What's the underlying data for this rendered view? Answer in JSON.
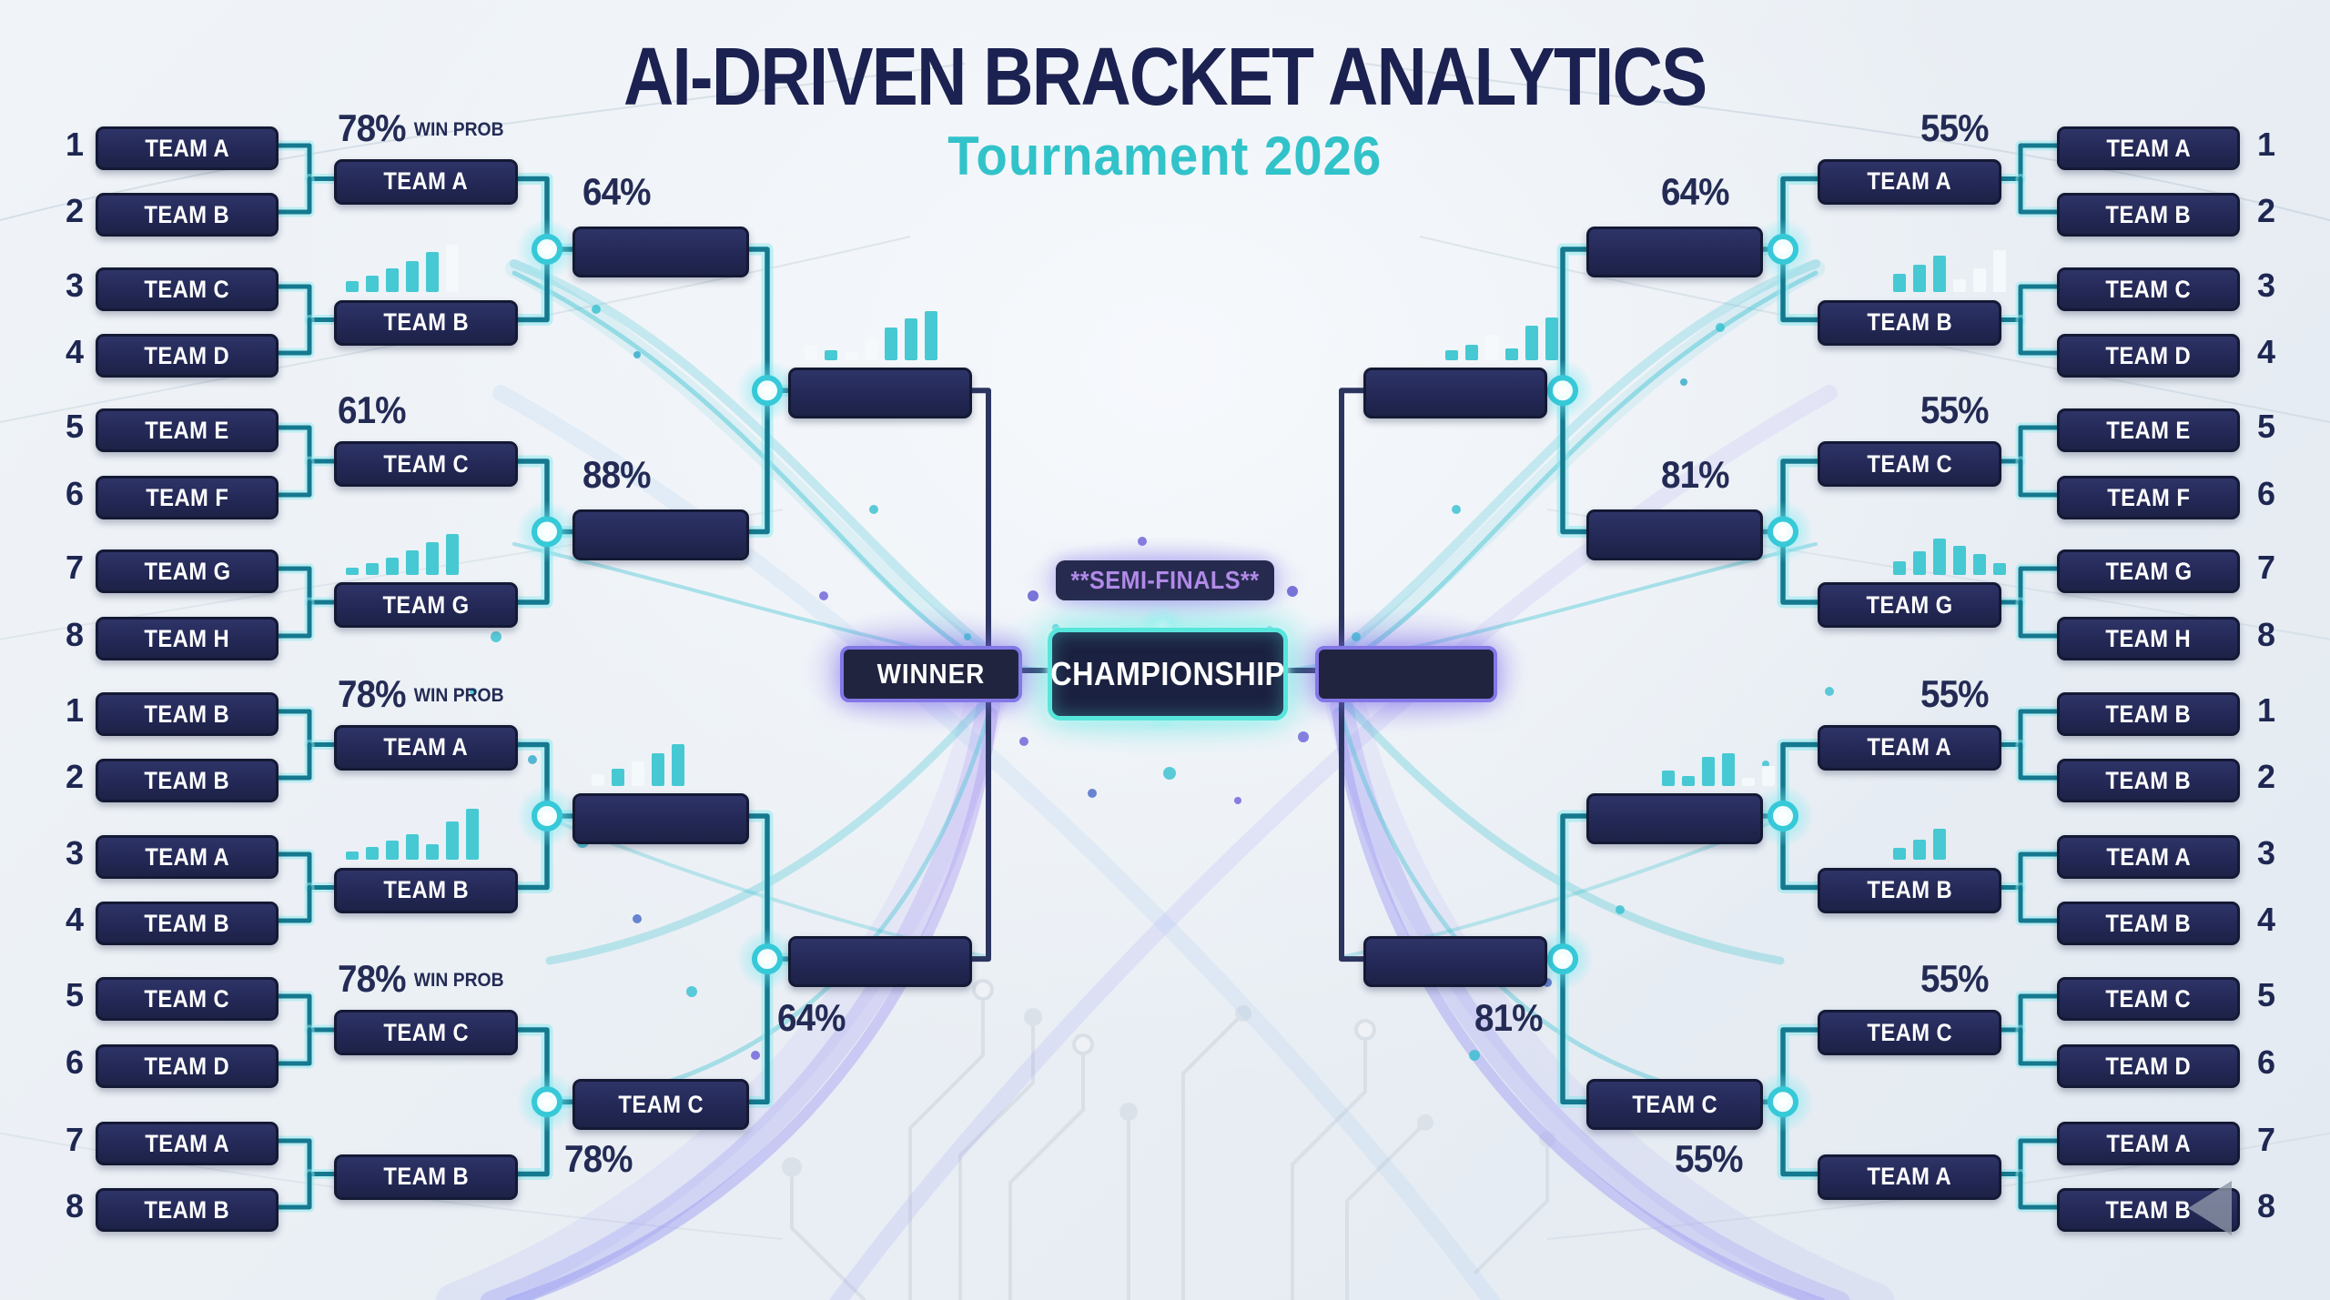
{
  "header": {
    "title": "AI-DRIVEN BRACKET ANALYTICS",
    "subtitle": "Tournament 2026"
  },
  "center": {
    "semi_finals": "**SEMI-FINALS**",
    "championship": "CHAMPIONSHIP",
    "winner": "WINNER",
    "final_right": ""
  },
  "colors": {
    "background": "#edf1f6",
    "navy_text": "#1b2150",
    "teal_accent": "#31c3c9",
    "box_fill": "#232856",
    "wire_teal": "#15798f",
    "spine_navy": "#2c3560",
    "purple_accent": "#8377e6",
    "championship_border": "#58e6dc",
    "semi_finals_text": "#b18ae8"
  },
  "icons": {
    "bottom_right_corner": "playback-arrow-icon"
  },
  "left_bracket": {
    "quads": [
      {
        "seeds": [
          {
            "seed": "1",
            "team": "TEAM A"
          },
          {
            "seed": "2",
            "team": "TEAM B"
          },
          {
            "seed": "3",
            "team": "TEAM C"
          },
          {
            "seed": "4",
            "team": "TEAM D"
          },
          {
            "seed": "5",
            "team": "TEAM E"
          },
          {
            "seed": "6",
            "team": "TEAM F"
          },
          {
            "seed": "7",
            "team": "TEAM G"
          },
          {
            "seed": "8",
            "team": "TEAM H"
          }
        ],
        "round2": [
          {
            "team": "TEAM A",
            "pct": "78%",
            "pct_note": "WIN PROB"
          },
          {
            "team": "TEAM B",
            "pct": "",
            "pct_note": ""
          },
          {
            "team": "TEAM C",
            "pct": "61%",
            "pct_note": ""
          },
          {
            "team": "TEAM G",
            "pct": "",
            "pct_note": ""
          }
        ],
        "round3": [
          {
            "team": "",
            "pct_above": "64%",
            "pct_below": ""
          },
          {
            "team": "",
            "pct_above": "88%",
            "pct_below": ""
          }
        ]
      },
      {
        "seeds": [
          {
            "seed": "1",
            "team": "TEAM B"
          },
          {
            "seed": "2",
            "team": "TEAM B"
          },
          {
            "seed": "3",
            "team": "TEAM A"
          },
          {
            "seed": "4",
            "team": "TEAM B"
          },
          {
            "seed": "5",
            "team": "TEAM C"
          },
          {
            "seed": "6",
            "team": "TEAM D"
          },
          {
            "seed": "7",
            "team": "TEAM A"
          },
          {
            "seed": "8",
            "team": "TEAM B"
          }
        ],
        "round2": [
          {
            "team": "TEAM A",
            "pct": "78%",
            "pct_note": "WIN PROB"
          },
          {
            "team": "TEAM B",
            "pct": "",
            "pct_note": ""
          },
          {
            "team": "TEAM C",
            "pct": "78%",
            "pct_note": "WIN PROB"
          },
          {
            "team": "TEAM B",
            "pct": "",
            "pct_note": ""
          }
        ],
        "round3": [
          {
            "team": "",
            "pct_above": "",
            "pct_below": ""
          },
          {
            "team": "TEAM C",
            "pct_above": "",
            "pct_below": "78%"
          }
        ]
      }
    ],
    "round4": [
      {
        "team": "",
        "pct_below": ""
      },
      {
        "team": "",
        "pct_below": "64%"
      }
    ]
  },
  "right_bracket": {
    "quads": [
      {
        "seeds": [
          {
            "seed": "1",
            "team": "TEAM A"
          },
          {
            "seed": "2",
            "team": "TEAM B"
          },
          {
            "seed": "3",
            "team": "TEAM C"
          },
          {
            "seed": "4",
            "team": "TEAM D"
          },
          {
            "seed": "5",
            "team": "TEAM E"
          },
          {
            "seed": "6",
            "team": "TEAM F"
          },
          {
            "seed": "7",
            "team": "TEAM G"
          },
          {
            "seed": "8",
            "team": "TEAM H"
          }
        ],
        "round2": [
          {
            "team": "TEAM A",
            "pct": "55%",
            "pct_note": ""
          },
          {
            "team": "TEAM B",
            "pct": "",
            "pct_note": ""
          },
          {
            "team": "TEAM C",
            "pct": "55%",
            "pct_note": ""
          },
          {
            "team": "TEAM G",
            "pct": "",
            "pct_note": ""
          }
        ],
        "round3": [
          {
            "team": "",
            "pct_above": "64%",
            "pct_below": ""
          },
          {
            "team": "",
            "pct_above": "81%",
            "pct_below": ""
          }
        ]
      },
      {
        "seeds": [
          {
            "seed": "1",
            "team": "TEAM B"
          },
          {
            "seed": "2",
            "team": "TEAM B"
          },
          {
            "seed": "3",
            "team": "TEAM A"
          },
          {
            "seed": "4",
            "team": "TEAM B"
          },
          {
            "seed": "5",
            "team": "TEAM C"
          },
          {
            "seed": "6",
            "team": "TEAM D"
          },
          {
            "seed": "7",
            "team": "TEAM A"
          },
          {
            "seed": "8",
            "team": "TEAM B"
          }
        ],
        "round2": [
          {
            "team": "TEAM A",
            "pct": "55%",
            "pct_note": ""
          },
          {
            "team": "TEAM B",
            "pct": "",
            "pct_note": ""
          },
          {
            "team": "TEAM C",
            "pct": "55%",
            "pct_note": ""
          },
          {
            "team": "TEAM A",
            "pct": "",
            "pct_note": ""
          }
        ],
        "round3": [
          {
            "team": "",
            "pct_above": "",
            "pct_below": ""
          },
          {
            "team": "TEAM C",
            "pct_above": "",
            "pct_below": "55%"
          }
        ]
      }
    ],
    "round4": [
      {
        "team": "",
        "pct_below": ""
      },
      {
        "team": "",
        "pct_below": "81%"
      }
    ]
  }
}
